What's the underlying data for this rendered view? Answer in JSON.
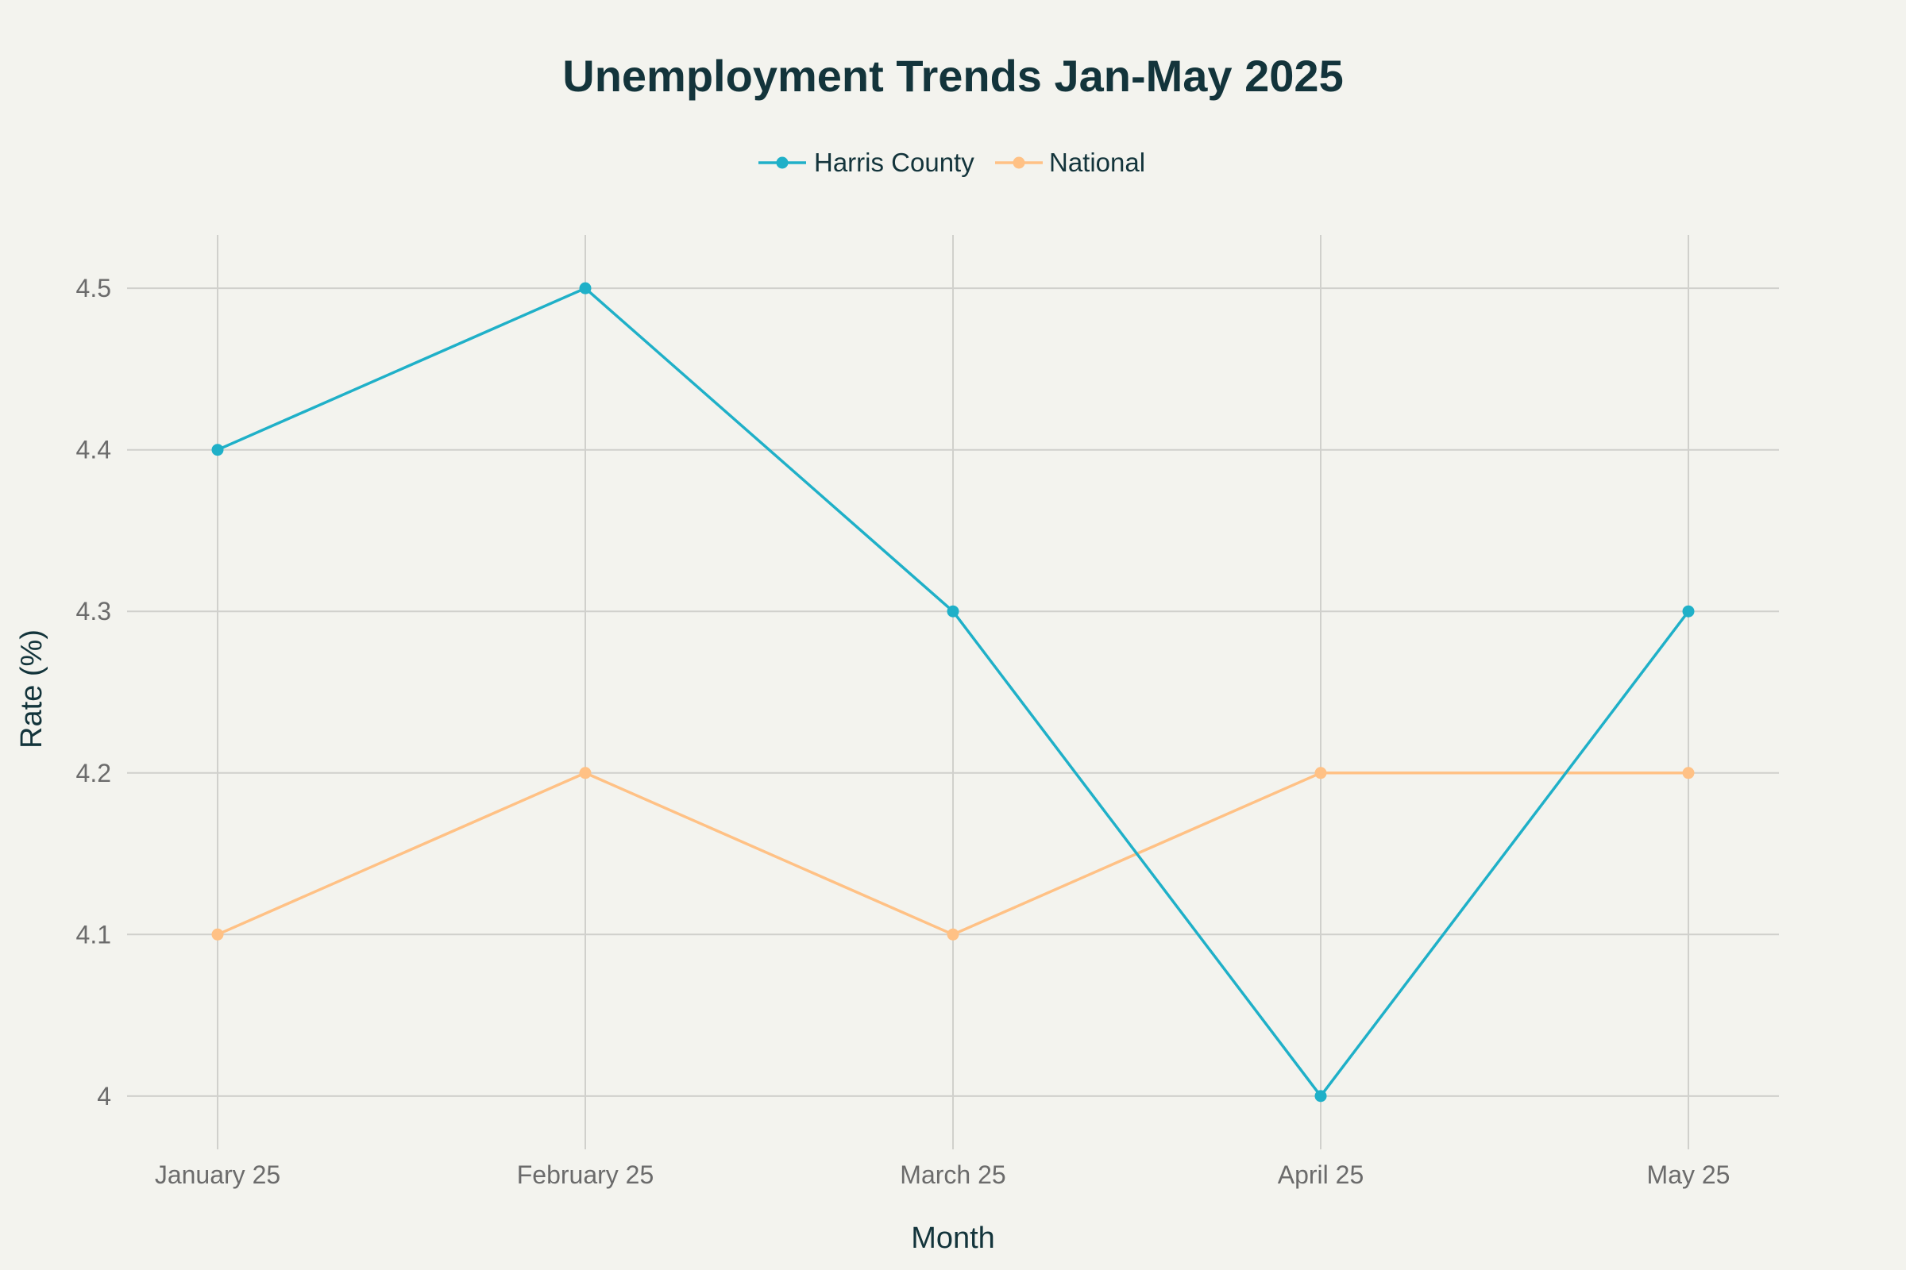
{
  "chart_data": {
    "type": "line",
    "title": "Unemployment Trends Jan-May 2025",
    "xlabel": "Month",
    "ylabel": "Rate (%)",
    "categories": [
      "January 25",
      "February 25",
      "March 25",
      "April 25",
      "May 25"
    ],
    "y_ticks": [
      "4",
      "4.1",
      "4.2",
      "4.3",
      "4.4",
      "4.5"
    ],
    "ylim": [
      3.967,
      4.533
    ],
    "grid": true,
    "legend_position": "top-center",
    "series": [
      {
        "name": "Harris County",
        "color": "#1fb0c8",
        "values": [
          4.4,
          4.5,
          4.3,
          4.0,
          4.3
        ]
      },
      {
        "name": "National",
        "color": "#ffc185",
        "values": [
          4.1,
          4.2,
          4.1,
          4.2,
          4.2
        ]
      }
    ]
  }
}
